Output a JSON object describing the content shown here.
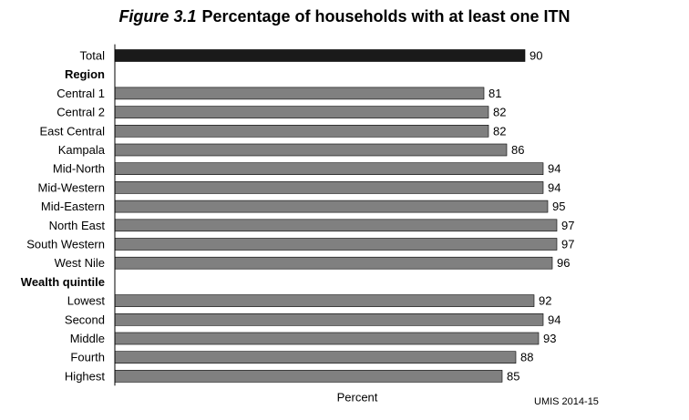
{
  "figure": {
    "label": "Figure 3.1",
    "title": "Percentage of households with at least one ITN",
    "source": "UMIS 2014-15"
  },
  "chart_data": {
    "type": "bar",
    "orientation": "horizontal",
    "title": "Percentage of households with at least one ITN",
    "xlabel": "Percent",
    "ylabel": "",
    "xlim": [
      0,
      100
    ],
    "grid": false,
    "legend": "none",
    "colors": {
      "total": "#1a1a1a",
      "default": "#808080"
    },
    "rows": [
      {
        "label": "Total",
        "kind": "total",
        "value": 90
      },
      {
        "label": "Region",
        "kind": "heading"
      },
      {
        "label": "Central 1",
        "kind": "bar",
        "value": 81
      },
      {
        "label": "Central 2",
        "kind": "bar",
        "value": 82
      },
      {
        "label": "East Central",
        "kind": "bar",
        "value": 82
      },
      {
        "label": "Kampala",
        "kind": "bar",
        "value": 86
      },
      {
        "label": "Mid-North",
        "kind": "bar",
        "value": 94
      },
      {
        "label": "Mid-Western",
        "kind": "bar",
        "value": 94
      },
      {
        "label": "Mid-Eastern",
        "kind": "bar",
        "value": 95
      },
      {
        "label": "North East",
        "kind": "bar",
        "value": 97
      },
      {
        "label": "South Western",
        "kind": "bar",
        "value": 97
      },
      {
        "label": "West Nile",
        "kind": "bar",
        "value": 96
      },
      {
        "label": "Wealth quintile",
        "kind": "heading"
      },
      {
        "label": "Lowest",
        "kind": "bar",
        "value": 92
      },
      {
        "label": "Second",
        "kind": "bar",
        "value": 94
      },
      {
        "label": "Middle",
        "kind": "bar",
        "value": 93
      },
      {
        "label": "Fourth",
        "kind": "bar",
        "value": 88
      },
      {
        "label": "Highest",
        "kind": "bar",
        "value": 85
      }
    ]
  }
}
